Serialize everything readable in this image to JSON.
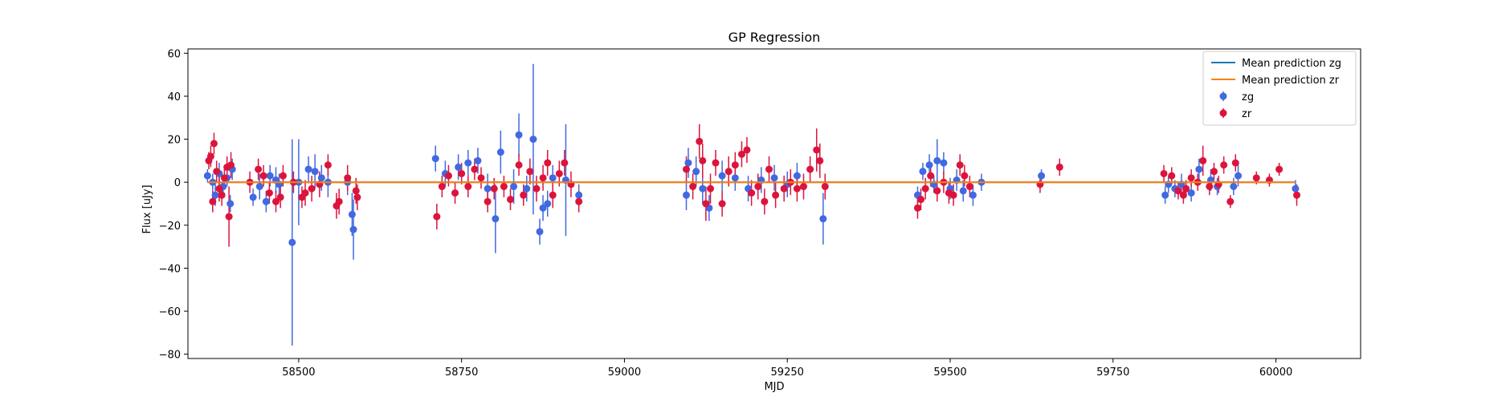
{
  "chart_data": {
    "type": "scatter",
    "title": "GP Regression",
    "xlabel": "MJD",
    "ylabel": "Flux [uJy]",
    "xlim": [
      58330,
      60130
    ],
    "ylim": [
      -82,
      62
    ],
    "xticks": [
      58500,
      58750,
      59000,
      59250,
      59500,
      59750,
      60000
    ],
    "yticks": [
      -80,
      -60,
      -40,
      -20,
      0,
      20,
      40,
      60
    ],
    "grid": false,
    "legend": "top-right",
    "lines": [
      {
        "name": "Mean prediction zg",
        "color": "#1f77b4",
        "x": [
          58360,
          60030
        ],
        "y": [
          0,
          0
        ]
      },
      {
        "name": "Mean prediction zr",
        "color": "#ff7f0e",
        "x": [
          58360,
          60030
        ],
        "y": [
          0,
          0
        ]
      }
    ],
    "series": [
      {
        "name": "zg",
        "color": "#4169e1",
        "points": [
          [
            58360,
            3,
            3
          ],
          [
            58368,
            0,
            4
          ],
          [
            58372,
            -6,
            5
          ],
          [
            58378,
            4,
            5
          ],
          [
            58384,
            -2,
            4
          ],
          [
            58390,
            2,
            4
          ],
          [
            58395,
            -10,
            4
          ],
          [
            58398,
            6,
            5
          ],
          [
            58430,
            -7,
            4
          ],
          [
            58440,
            -2,
            6
          ],
          [
            58450,
            -9,
            5
          ],
          [
            58456,
            3,
            5
          ],
          [
            58465,
            1,
            6
          ],
          [
            58470,
            -1,
            5
          ],
          [
            58490,
            -28,
            48
          ],
          [
            58500,
            0,
            20
          ],
          [
            58515,
            6,
            6
          ],
          [
            58525,
            5,
            8
          ],
          [
            58535,
            2,
            6
          ],
          [
            58545,
            0,
            7
          ],
          [
            58575,
            0,
            6
          ],
          [
            58582,
            -15,
            10
          ],
          [
            58584,
            -22,
            14
          ],
          [
            58710,
            11,
            6
          ],
          [
            58725,
            4,
            6
          ],
          [
            58745,
            7,
            6
          ],
          [
            58760,
            9,
            6
          ],
          [
            58775,
            10,
            6
          ],
          [
            58790,
            -3,
            7
          ],
          [
            58802,
            -17,
            16
          ],
          [
            58810,
            14,
            10
          ],
          [
            58830,
            -2,
            8
          ],
          [
            58838,
            22,
            10
          ],
          [
            58850,
            -3,
            6
          ],
          [
            58860,
            20,
            35
          ],
          [
            58870,
            -23,
            6
          ],
          [
            58875,
            -12,
            6
          ],
          [
            58882,
            -10,
            6
          ],
          [
            58890,
            2,
            6
          ],
          [
            58910,
            1,
            26
          ],
          [
            58930,
            -6,
            5
          ],
          [
            59095,
            -6,
            7
          ],
          [
            59098,
            9,
            7
          ],
          [
            59110,
            5,
            7
          ],
          [
            59120,
            -3,
            7
          ],
          [
            59130,
            -12,
            6
          ],
          [
            59150,
            3,
            7
          ],
          [
            59170,
            2,
            6
          ],
          [
            59190,
            -3,
            6
          ],
          [
            59210,
            1,
            6
          ],
          [
            59230,
            2,
            6
          ],
          [
            59250,
            -1,
            6
          ],
          [
            59265,
            3,
            6
          ],
          [
            59305,
            -17,
            12
          ],
          [
            59450,
            -6,
            4
          ],
          [
            59458,
            5,
            4
          ],
          [
            59468,
            8,
            5
          ],
          [
            59475,
            -1,
            4
          ],
          [
            59480,
            10,
            10
          ],
          [
            59490,
            9,
            5
          ],
          [
            59500,
            -3,
            5
          ],
          [
            59510,
            1,
            5
          ],
          [
            59520,
            -4,
            5
          ],
          [
            59535,
            -6,
            5
          ],
          [
            59548,
            0,
            4
          ],
          [
            59640,
            3,
            3
          ],
          [
            59830,
            -6,
            4
          ],
          [
            59835,
            -1,
            4
          ],
          [
            59845,
            -3,
            4
          ],
          [
            59855,
            -1,
            5
          ],
          [
            59870,
            -5,
            4
          ],
          [
            59882,
            6,
            5
          ],
          [
            59900,
            1,
            5
          ],
          [
            59910,
            -2,
            4
          ],
          [
            59935,
            -2,
            4
          ],
          [
            59942,
            3,
            5
          ],
          [
            60030,
            -3,
            4
          ]
        ]
      },
      {
        "name": "zr",
        "color": "#dc143c",
        "points": [
          [
            58362,
            10,
            4
          ],
          [
            58365,
            12,
            5
          ],
          [
            58368,
            -9,
            5
          ],
          [
            58370,
            18,
            5
          ],
          [
            58374,
            5,
            5
          ],
          [
            58378,
            -3,
            6
          ],
          [
            58382,
            -6,
            5
          ],
          [
            58386,
            2,
            5
          ],
          [
            58390,
            7,
            5
          ],
          [
            58393,
            -16,
            14
          ],
          [
            58396,
            8,
            6
          ],
          [
            58425,
            0,
            5
          ],
          [
            58438,
            6,
            5
          ],
          [
            58446,
            3,
            5
          ],
          [
            58455,
            -5,
            5
          ],
          [
            58465,
            -9,
            5
          ],
          [
            58472,
            -7,
            5
          ],
          [
            58476,
            3,
            5
          ],
          [
            58492,
            0,
            5
          ],
          [
            58505,
            -7,
            5
          ],
          [
            58510,
            -5,
            6
          ],
          [
            58520,
            -3,
            6
          ],
          [
            58532,
            -1,
            6
          ],
          [
            58545,
            8,
            5
          ],
          [
            58558,
            -11,
            6
          ],
          [
            58562,
            -9,
            6
          ],
          [
            58575,
            2,
            6
          ],
          [
            58588,
            -4,
            6
          ],
          [
            58590,
            -7,
            6
          ],
          [
            58712,
            -16,
            6
          ],
          [
            58720,
            -2,
            5
          ],
          [
            58730,
            3,
            5
          ],
          [
            58740,
            -5,
            5
          ],
          [
            58750,
            4,
            5
          ],
          [
            58760,
            -2,
            5
          ],
          [
            58770,
            6,
            5
          ],
          [
            58780,
            2,
            5
          ],
          [
            58790,
            -9,
            5
          ],
          [
            58800,
            -3,
            5
          ],
          [
            58815,
            -2,
            5
          ],
          [
            58825,
            -8,
            5
          ],
          [
            58838,
            8,
            5
          ],
          [
            58845,
            -6,
            5
          ],
          [
            58855,
            5,
            6
          ],
          [
            58865,
            -3,
            6
          ],
          [
            58875,
            2,
            6
          ],
          [
            58882,
            9,
            6
          ],
          [
            58890,
            -6,
            6
          ],
          [
            58900,
            4,
            6
          ],
          [
            58908,
            9,
            6
          ],
          [
            58918,
            -1,
            6
          ],
          [
            58930,
            -9,
            5
          ],
          [
            59095,
            6,
            6
          ],
          [
            59105,
            -2,
            6
          ],
          [
            59115,
            19,
            8
          ],
          [
            59120,
            10,
            8
          ],
          [
            59125,
            -10,
            8
          ],
          [
            59132,
            -3,
            7
          ],
          [
            59140,
            9,
            6
          ],
          [
            59150,
            -10,
            6
          ],
          [
            59160,
            5,
            7
          ],
          [
            59170,
            8,
            6
          ],
          [
            59180,
            13,
            6
          ],
          [
            59188,
            15,
            6
          ],
          [
            59195,
            -5,
            6
          ],
          [
            59205,
            -2,
            6
          ],
          [
            59215,
            -9,
            6
          ],
          [
            59222,
            6,
            6
          ],
          [
            59232,
            -6,
            6
          ],
          [
            59245,
            -3,
            6
          ],
          [
            59255,
            0,
            6
          ],
          [
            59265,
            -3,
            6
          ],
          [
            59275,
            -2,
            6
          ],
          [
            59285,
            6,
            6
          ],
          [
            59295,
            15,
            10
          ],
          [
            59300,
            10,
            8
          ],
          [
            59308,
            -2,
            6
          ],
          [
            59450,
            -12,
            5
          ],
          [
            59455,
            -8,
            5
          ],
          [
            59462,
            -3,
            5
          ],
          [
            59470,
            3,
            5
          ],
          [
            59480,
            -4,
            5
          ],
          [
            59490,
            0,
            5
          ],
          [
            59498,
            -5,
            5
          ],
          [
            59505,
            -6,
            5
          ],
          [
            59515,
            8,
            5
          ],
          [
            59522,
            3,
            5
          ],
          [
            59530,
            -2,
            5
          ],
          [
            59638,
            -1,
            4
          ],
          [
            59668,
            7,
            4
          ],
          [
            59828,
            4,
            4
          ],
          [
            59840,
            3,
            4
          ],
          [
            59850,
            -4,
            4
          ],
          [
            59858,
            -6,
            4
          ],
          [
            59862,
            -3,
            4
          ],
          [
            59870,
            2,
            4
          ],
          [
            59880,
            0,
            4
          ],
          [
            59888,
            10,
            7
          ],
          [
            59898,
            -2,
            4
          ],
          [
            59905,
            5,
            4
          ],
          [
            59912,
            -1,
            4
          ],
          [
            59920,
            8,
            4
          ],
          [
            59930,
            -9,
            3
          ],
          [
            59938,
            9,
            4
          ],
          [
            59970,
            2,
            3
          ],
          [
            59990,
            1,
            3
          ],
          [
            60005,
            6,
            3
          ],
          [
            60032,
            -6,
            5
          ]
        ]
      }
    ]
  }
}
